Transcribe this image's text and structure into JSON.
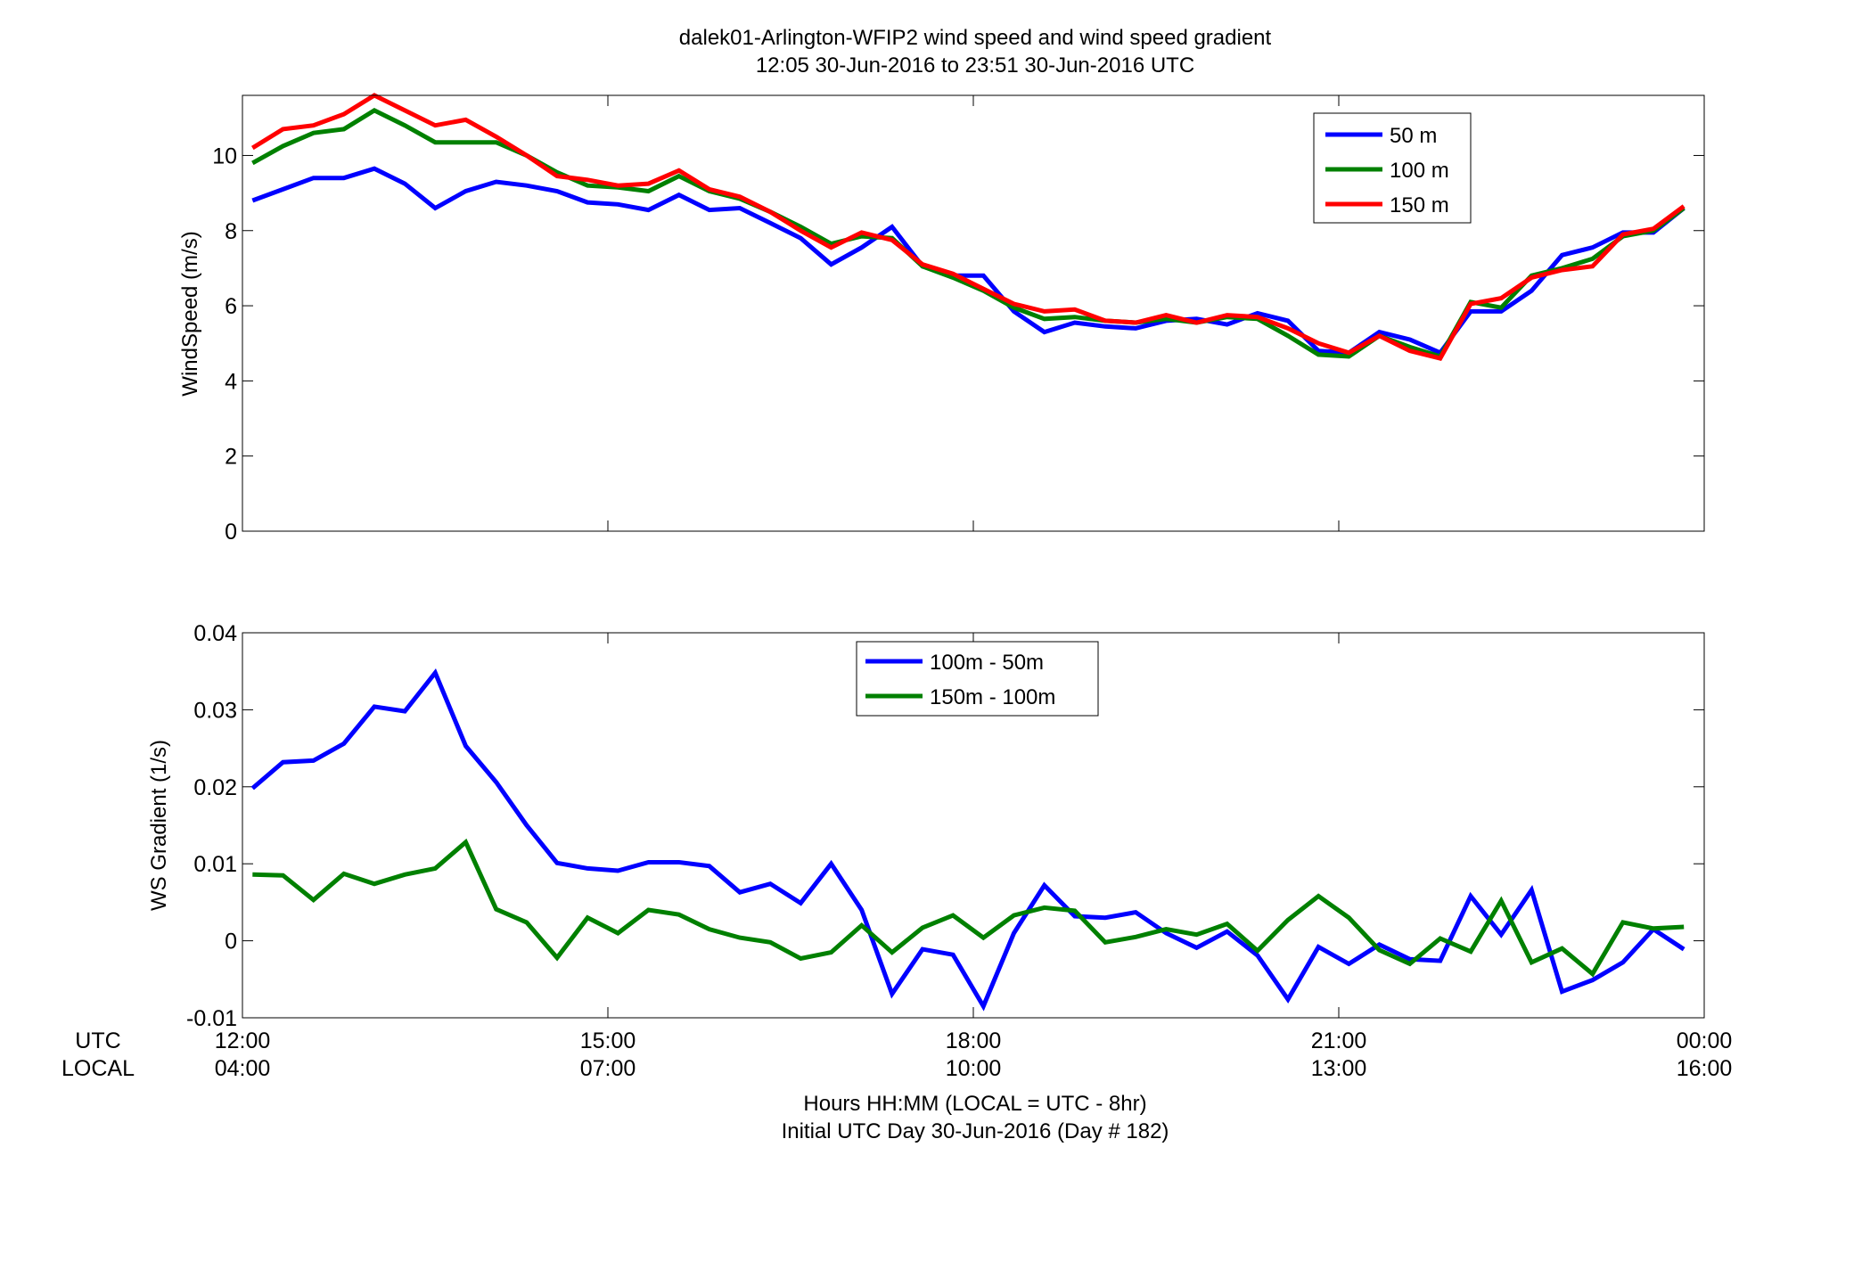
{
  "figure": {
    "title_line1": "dalek01-Arlington-WFIP2  wind speed and wind speed gradient",
    "title_line2": "12:05 30-Jun-2016 to 23:51 30-Jun-2016  UTC",
    "xlabel_line1": "Hours HH:MM  (LOCAL = UTC - 8hr)",
    "xlabel_line2": "Initial UTC Day 30-Jun-2016 (Day # 182)",
    "utc_label": "UTC",
    "local_label": "LOCAL",
    "xticks": [
      {
        "hours": 12,
        "utc": "12:00",
        "local": "04:00"
      },
      {
        "hours": 15,
        "utc": "15:00",
        "local": "07:00"
      },
      {
        "hours": 18,
        "utc": "18:00",
        "local": "10:00"
      },
      {
        "hours": 21,
        "utc": "21:00",
        "local": "13:00"
      },
      {
        "hours": 24,
        "utc": "00:00",
        "local": "16:00"
      }
    ]
  },
  "chart_data": [
    {
      "type": "line",
      "id": "windspeed",
      "ylabel": "WindSpeed (m/s)",
      "xlim": [
        12,
        24
      ],
      "ylim": [
        0,
        11.6
      ],
      "yticks": [
        0,
        2,
        4,
        6,
        8,
        10
      ],
      "legend_position": "top-right",
      "x": [
        12.083,
        12.333,
        12.583,
        12.833,
        13.083,
        13.333,
        13.583,
        13.833,
        14.083,
        14.333,
        14.583,
        14.833,
        15.083,
        15.333,
        15.583,
        15.833,
        16.083,
        16.333,
        16.583,
        16.833,
        17.083,
        17.333,
        17.583,
        17.833,
        18.083,
        18.333,
        18.583,
        18.833,
        19.083,
        19.333,
        19.583,
        19.833,
        20.083,
        20.333,
        20.583,
        20.833,
        21.083,
        21.333,
        21.583,
        21.833,
        22.083,
        22.333,
        22.583,
        22.833,
        23.083,
        23.333,
        23.583,
        23.833
      ],
      "series": [
        {
          "name": "50 m",
          "color": "#0000ff",
          "values": [
            8.8,
            9.1,
            9.4,
            9.4,
            9.65,
            9.25,
            8.6,
            9.05,
            9.3,
            9.2,
            9.05,
            8.75,
            8.7,
            8.55,
            8.95,
            8.55,
            8.6,
            8.2,
            7.8,
            7.1,
            7.55,
            8.1,
            7.05,
            6.8,
            6.8,
            5.85,
            5.3,
            5.55,
            5.45,
            5.4,
            5.6,
            5.65,
            5.5,
            5.8,
            5.6,
            4.8,
            4.75,
            5.3,
            5.1,
            4.75,
            5.85,
            5.85,
            6.4,
            7.35,
            7.55,
            7.95,
            7.95,
            8.6
          ]
        },
        {
          "name": "100 m",
          "color": "#008000",
          "values": [
            9.8,
            10.25,
            10.6,
            10.7,
            11.2,
            10.8,
            10.35,
            10.35,
            10.35,
            10.0,
            9.55,
            9.2,
            9.15,
            9.05,
            9.45,
            9.05,
            8.85,
            8.5,
            8.1,
            7.65,
            7.85,
            7.8,
            7.05,
            6.75,
            6.4,
            5.95,
            5.65,
            5.7,
            5.6,
            5.55,
            5.65,
            5.55,
            5.7,
            5.65,
            5.2,
            4.7,
            4.65,
            5.2,
            4.9,
            4.65,
            6.1,
            5.95,
            6.8,
            7.0,
            7.25,
            7.85,
            8.0,
            8.6
          ]
        },
        {
          "name": "150 m",
          "color": "#ff0000",
          "values": [
            10.2,
            10.7,
            10.8,
            11.1,
            11.6,
            11.2,
            10.8,
            10.95,
            10.5,
            10.0,
            9.45,
            9.35,
            9.2,
            9.25,
            9.6,
            9.1,
            8.9,
            8.5,
            8.0,
            7.55,
            7.95,
            7.75,
            7.1,
            6.85,
            6.45,
            6.05,
            5.85,
            5.9,
            5.6,
            5.55,
            5.75,
            5.55,
            5.75,
            5.7,
            5.4,
            5.0,
            4.75,
            5.2,
            4.8,
            4.6,
            6.05,
            6.2,
            6.75,
            6.95,
            7.05,
            7.9,
            8.05,
            8.65
          ]
        }
      ]
    },
    {
      "type": "line",
      "id": "gradient",
      "ylabel": "WS Gradient (1/s)",
      "xlim": [
        12,
        24
      ],
      "ylim": [
        -0.01,
        0.04
      ],
      "yticks": [
        -0.01,
        0,
        0.01,
        0.02,
        0.03,
        0.04
      ],
      "legend_position": "top-center",
      "x": [
        12.083,
        12.333,
        12.583,
        12.833,
        13.083,
        13.333,
        13.583,
        13.833,
        14.083,
        14.333,
        14.583,
        14.833,
        15.083,
        15.333,
        15.583,
        15.833,
        16.083,
        16.333,
        16.583,
        16.833,
        17.083,
        17.333,
        17.583,
        17.833,
        18.083,
        18.333,
        18.583,
        18.833,
        19.083,
        19.333,
        19.583,
        19.833,
        20.083,
        20.333,
        20.583,
        20.833,
        21.083,
        21.333,
        21.583,
        21.833,
        22.083,
        22.333,
        22.583,
        22.833,
        23.083,
        23.333,
        23.583,
        23.833
      ],
      "series": [
        {
          "name": "100m - 50m",
          "color": "#0000ff",
          "values": [
            0.0198,
            0.0232,
            0.0234,
            0.0256,
            0.0304,
            0.0298,
            0.0348,
            0.0253,
            0.0206,
            0.015,
            0.0101,
            0.0094,
            0.0091,
            0.0102,
            0.0102,
            0.0097,
            0.0063,
            0.0074,
            0.0049,
            0.01,
            0.004,
            -0.0069,
            -0.0011,
            -0.0018,
            -0.0085,
            0.001,
            0.0072,
            0.0032,
            0.003,
            0.0037,
            0.001,
            -0.0009,
            0.0012,
            -0.0019,
            -0.0076,
            -0.0008,
            -0.003,
            -0.0005,
            -0.0024,
            -0.0026,
            0.0058,
            0.0008,
            0.0066,
            -0.0066,
            -0.0051,
            -0.0028,
            0.0015,
            -0.0011
          ]
        },
        {
          "name": "150m - 100m",
          "color": "#008000",
          "values": [
            0.0086,
            0.0085,
            0.0053,
            0.0087,
            0.0074,
            0.0086,
            0.0094,
            0.0128,
            0.0041,
            0.0024,
            -0.0022,
            0.003,
            0.001,
            0.004,
            0.0034,
            0.0015,
            0.0004,
            -0.0002,
            -0.0023,
            -0.0015,
            0.002,
            -0.0015,
            0.0017,
            0.0033,
            0.0004,
            0.0033,
            0.0043,
            0.0039,
            -0.0002,
            0.0005,
            0.0015,
            0.0008,
            0.0022,
            -0.0013,
            0.0027,
            0.0058,
            0.003,
            -0.0012,
            -0.003,
            0.0003,
            -0.0014,
            0.0052,
            -0.0028,
            -0.001,
            -0.0043,
            0.0024,
            0.0016,
            0.0018
          ]
        }
      ]
    }
  ]
}
